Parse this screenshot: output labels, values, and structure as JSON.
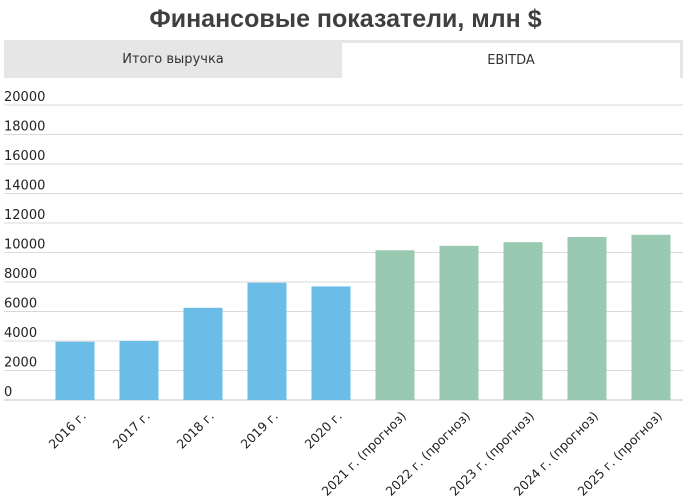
{
  "title": "Финансовые показатели, млн $",
  "tabs": [
    {
      "label": "Итого выручка",
      "active": false
    },
    {
      "label": "EBITDA",
      "active": true
    }
  ],
  "colors": {
    "actual": "#6bbde7",
    "forecast": "#99c9b0",
    "grid": "#d9d9d9",
    "tab_inactive": "#e6e6e6"
  },
  "chart_data": {
    "type": "bar",
    "title": "Финансовые показатели, млн $",
    "categories": [
      "2016 г.",
      "2017 г.",
      "2018 г.",
      "2019 г.",
      "2020 г.",
      "2021 г. (прогноз)",
      "2022 г. (прогноз)",
      "2023 г. (прогноз)",
      "2024 г. (прогноз)",
      "2025 г. (прогноз)"
    ],
    "values": [
      3950,
      4000,
      6250,
      7950,
      7700,
      10150,
      10450,
      10700,
      11050,
      11200
    ],
    "forecast": [
      false,
      false,
      false,
      false,
      false,
      true,
      true,
      true,
      true,
      true
    ],
    "ylim": [
      0,
      20000
    ],
    "yticks": [
      0,
      2000,
      4000,
      6000,
      8000,
      10000,
      12000,
      14000,
      16000,
      18000,
      20000
    ],
    "grid": true,
    "xlabel": "",
    "ylabel": ""
  }
}
